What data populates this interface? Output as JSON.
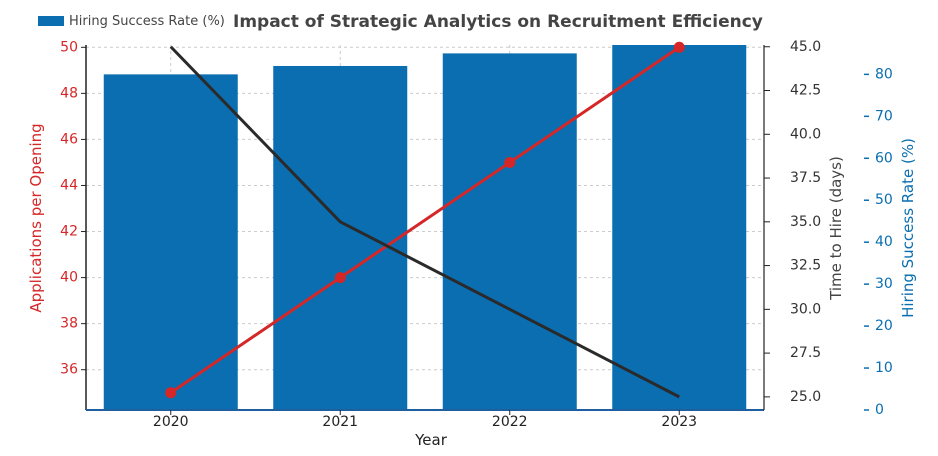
{
  "chart_data": {
    "type": "bar",
    "title": "Impact of Strategic Analytics on Recruitment Efficiency",
    "xlabel": "Year",
    "categories": [
      "2020",
      "2021",
      "2022",
      "2023"
    ],
    "legend": {
      "placement": "top-left",
      "entries": [
        "Hiring Success Rate (%)"
      ]
    },
    "grid": true,
    "series": [
      {
        "name": "Hiring Success Rate (%)",
        "type": "bar",
        "axis": "right-outer",
        "color": "#0a6eb0",
        "values": [
          80,
          82,
          85,
          87
        ]
      },
      {
        "type": "line",
        "axis": "left",
        "color": "#d62728",
        "markers": true,
        "values": [
          35,
          40,
          45,
          50
        ]
      },
      {
        "type": "line",
        "axis": "right-inner",
        "color": "#2a2a2a",
        "markers": false,
        "values": [
          45,
          35,
          30,
          25
        ]
      }
    ],
    "axes": {
      "left": {
        "label": "Applications per Opening",
        "color": "#d62728",
        "ylim": [
          34.25,
          50.1
        ],
        "ticks": [
          "36",
          "38",
          "40",
          "42",
          "44",
          "46",
          "48",
          "50"
        ]
      },
      "right_inner": {
        "label": "Time to Hire (days)",
        "color": "#555555",
        "ylim": [
          24.25,
          45.1
        ],
        "ticks": [
          "25.0",
          "27.5",
          "30.0",
          "32.5",
          "35.0",
          "37.5",
          "40.0",
          "42.5",
          "45.0"
        ]
      },
      "right_outer": {
        "label": "Hiring Success Rate (%)",
        "color": "#0a6eb0",
        "ylim": [
          0,
          87
        ],
        "ticks": [
          "0",
          "10",
          "20",
          "30",
          "40",
          "50",
          "60",
          "70",
          "80"
        ]
      }
    }
  }
}
